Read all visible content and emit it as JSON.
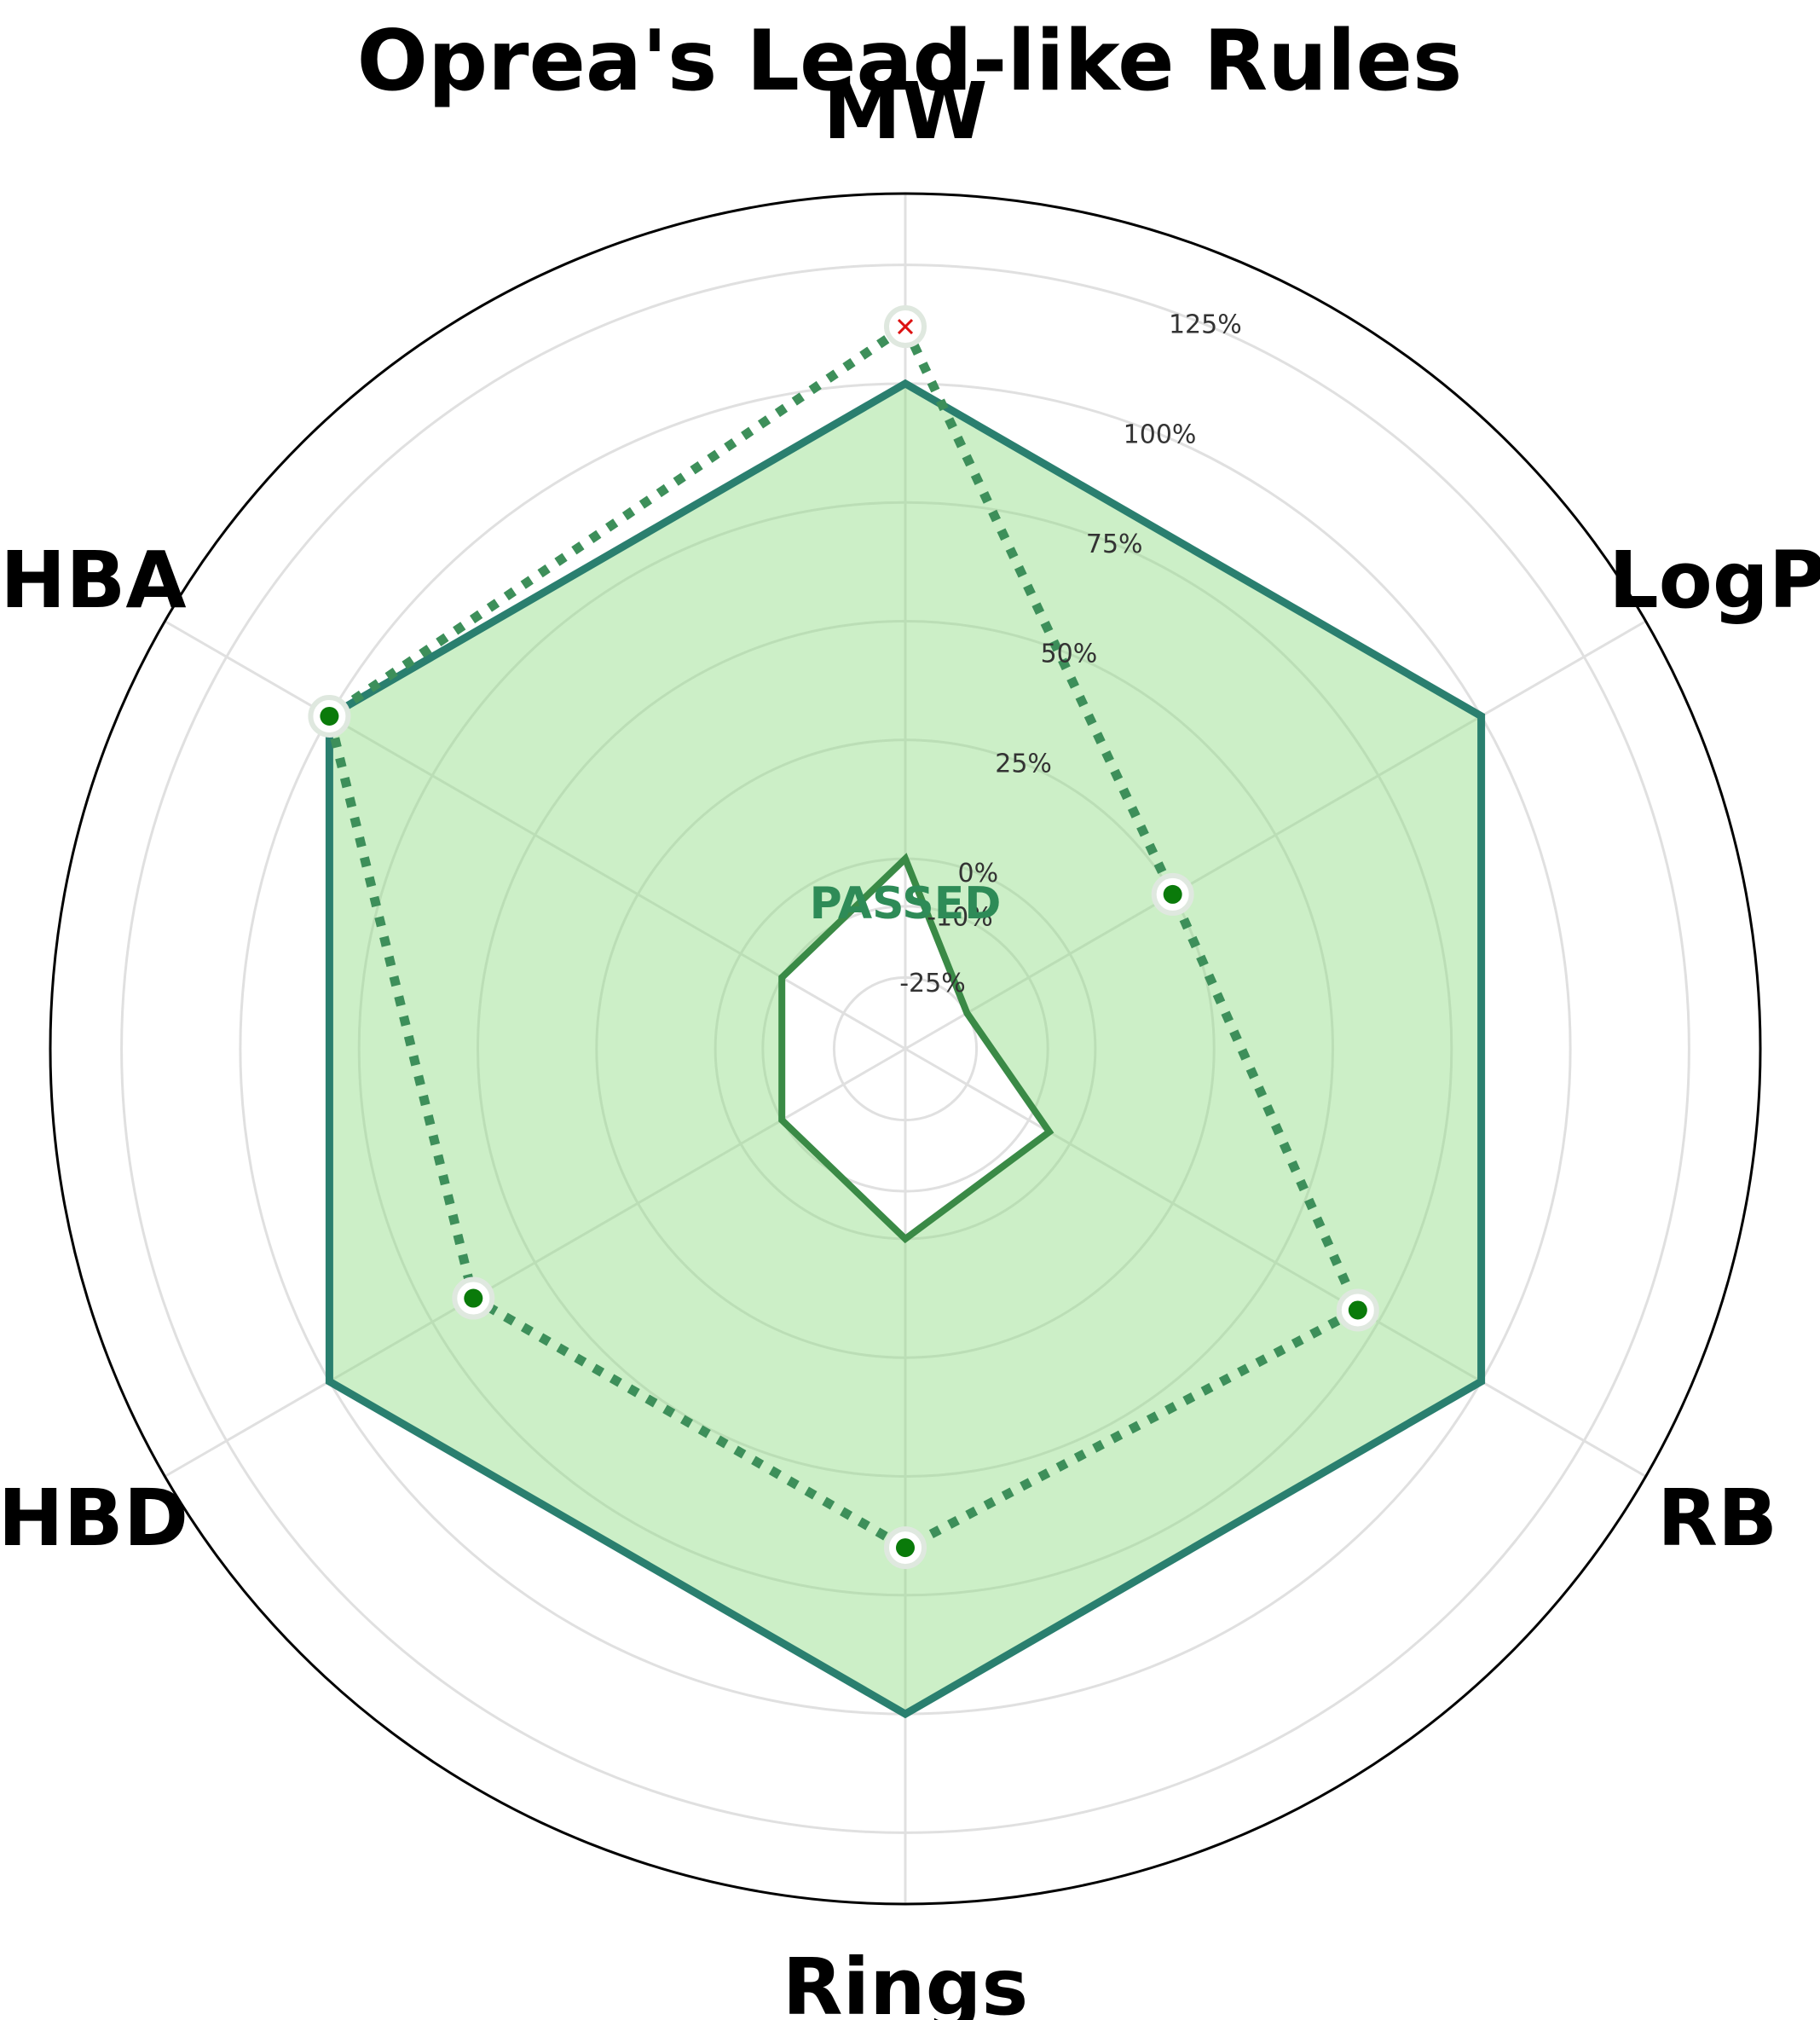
{
  "chart_data": {
    "type": "radar",
    "title": "Oprea's Lead-like Rules",
    "axes": [
      "MW",
      "LogP",
      "RB",
      "Rings",
      "HBD",
      "HBA"
    ],
    "radial_ticks": [
      "-25%",
      "-10%",
      "0%",
      "25%",
      "50%",
      "75%",
      "100%",
      "125%"
    ],
    "radial_tick_values": [
      -25,
      -10,
      0,
      25,
      50,
      75,
      100,
      125
    ],
    "rlim": [
      -40,
      140
    ],
    "series": [
      {
        "values": [
          100,
          100,
          100,
          100,
          100,
          100
        ],
        "style": "upper-limit-filled",
        "color": "#2a7f6f",
        "fill": "#90dd85"
      },
      {
        "values": [
          0,
          -25,
          -5,
          0,
          -10,
          -10
        ],
        "style": "lower-limit",
        "color": "#3a8a46"
      },
      {
        "values": [
          112,
          25,
          70,
          65,
          65,
          100
        ],
        "style": "compound-dotted",
        "color": "#3d8f5a"
      }
    ],
    "point_status": [
      "fail",
      "pass",
      "pass",
      "pass",
      "pass",
      "pass"
    ],
    "status_text": "PASSED",
    "colors": {
      "pass_marker": "#0a7a0a",
      "fail_marker": "#dd1111",
      "status": "#2e8b57"
    }
  }
}
